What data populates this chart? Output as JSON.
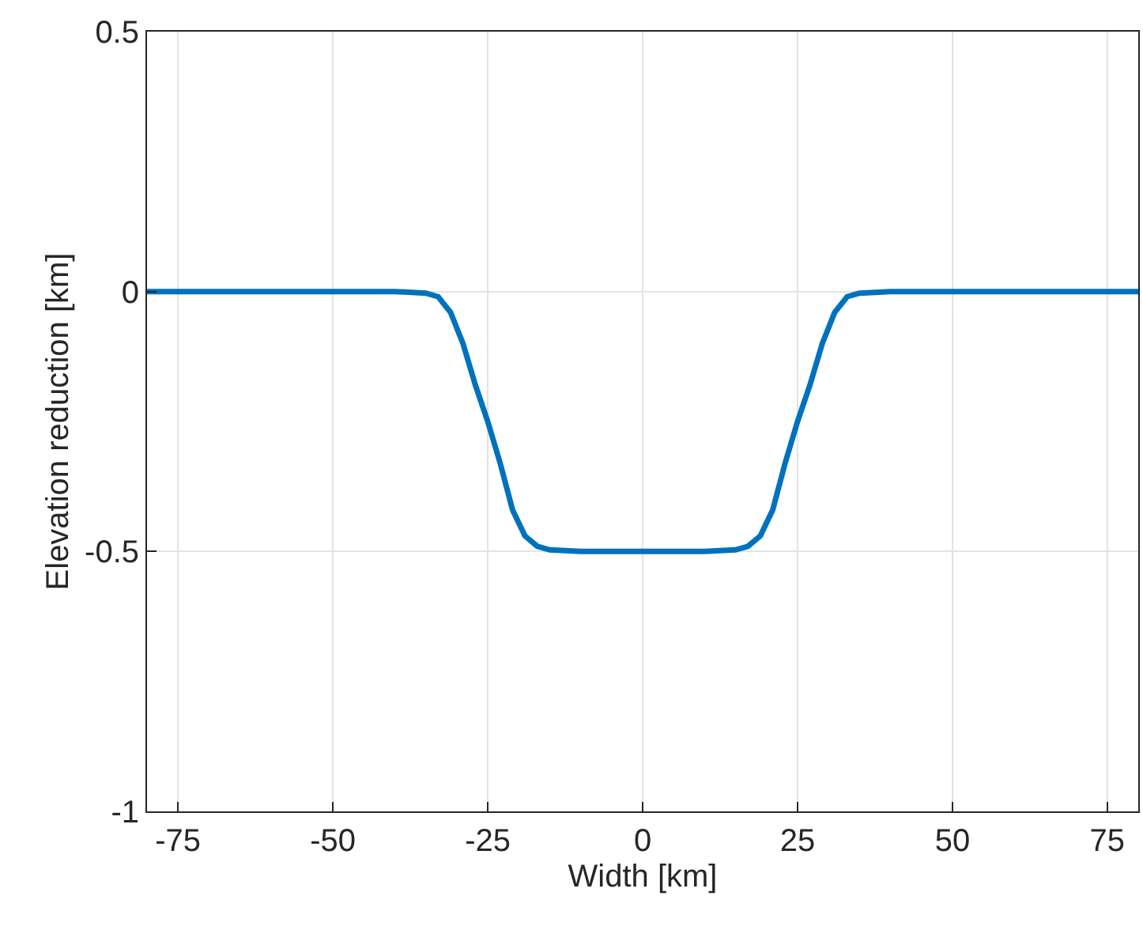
{
  "chart_data": {
    "type": "line",
    "xlabel": "Width [km]",
    "ylabel": "Elevation reduction [km]",
    "xlim": [
      -80,
      80
    ],
    "ylim": [
      -1,
      0.5
    ],
    "xticks": [
      -75,
      -50,
      -25,
      0,
      25,
      50,
      75
    ],
    "yticks": [
      -1,
      -0.5,
      0,
      0.5
    ],
    "grid": true,
    "marker": "none",
    "line_style": "solid",
    "series": [
      {
        "color": "#0072bd",
        "x": [
          -80,
          -60,
          -40,
          -35,
          -33,
          -31,
          -29,
          -27,
          -25,
          -23,
          -21,
          -19,
          -17,
          -15,
          -10,
          0,
          10,
          15,
          17,
          19,
          21,
          23,
          25,
          27,
          29,
          31,
          33,
          35,
          40,
          60,
          80
        ],
        "values": [
          0,
          0,
          0,
          -0.003,
          -0.01,
          -0.04,
          -0.1,
          -0.18,
          -0.25,
          -0.33,
          -0.42,
          -0.47,
          -0.49,
          -0.497,
          -0.5,
          -0.5,
          -0.5,
          -0.497,
          -0.49,
          -0.47,
          -0.42,
          -0.33,
          -0.25,
          -0.18,
          -0.1,
          -0.04,
          -0.01,
          -0.003,
          0,
          0,
          0
        ]
      }
    ]
  }
}
